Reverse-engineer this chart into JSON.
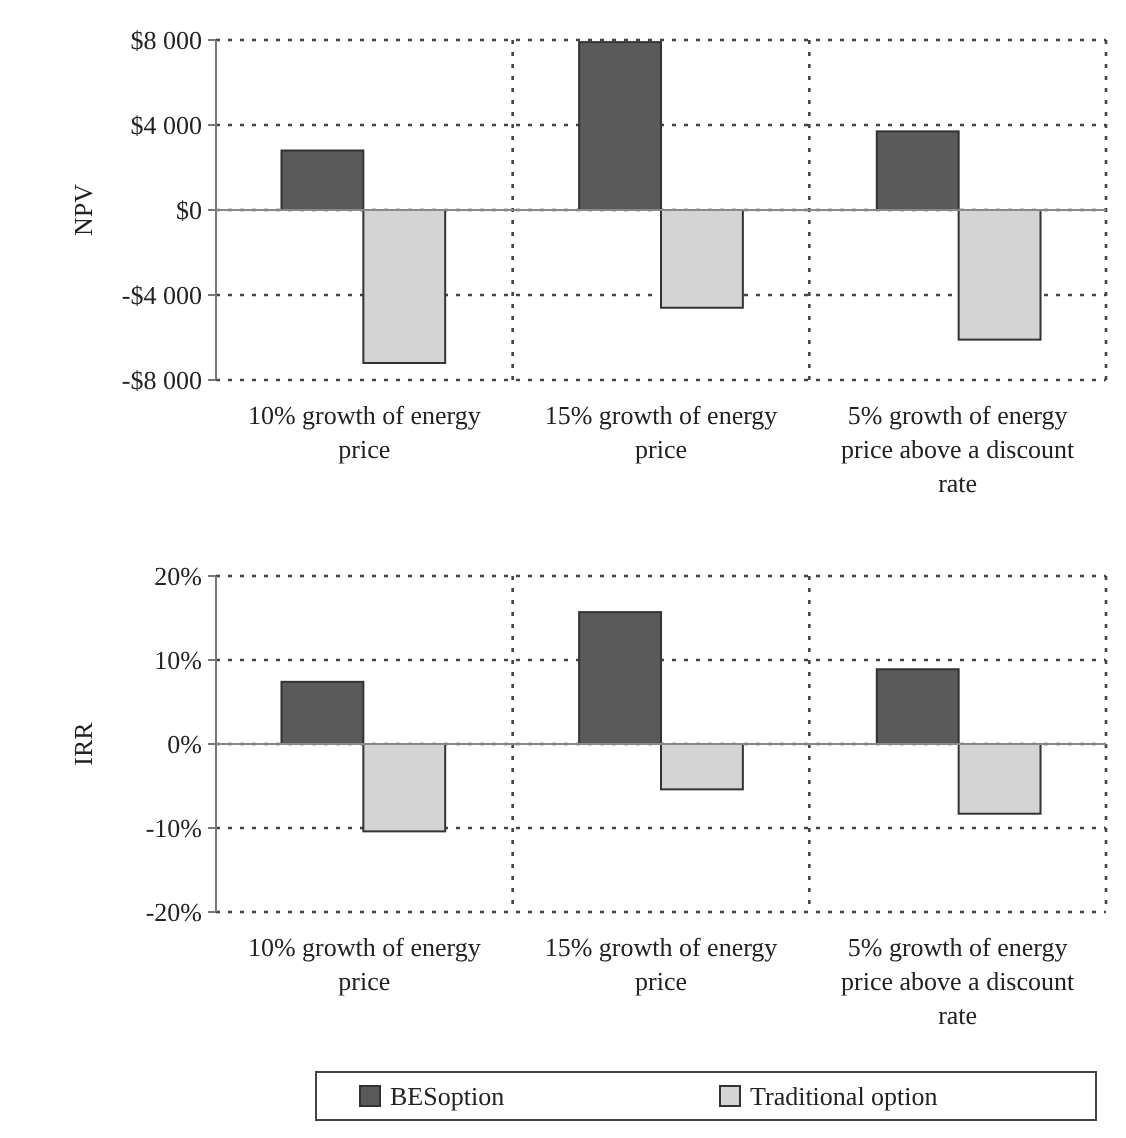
{
  "chart_data": [
    {
      "type": "bar",
      "ylabel": "NPV",
      "categories": [
        "10% growth of energy price",
        "15% growth of energy price",
        "5% growth of energy price above a discount rate"
      ],
      "series": [
        {
          "color": "#5a5a5a",
          "values": [
            2800,
            7900,
            3700
          ]
        },
        {
          "color": "#d4d4d4",
          "values": [
            -7200,
            -4600,
            -6100
          ]
        }
      ],
      "ylim": [
        -8000,
        8000
      ],
      "yticks": [
        {
          "value": -8000,
          "label": "-$8 000"
        },
        {
          "value": -4000,
          "label": "-$4 000"
        },
        {
          "value": 0,
          "label": "$0"
        },
        {
          "value": 4000,
          "label": "$4 000"
        },
        {
          "value": 8000,
          "label": "$8 000"
        }
      ],
      "grid": true,
      "legend": false
    },
    {
      "type": "bar",
      "ylabel": "IRR",
      "categories": [
        "10% growth of energy price",
        "15% growth of energy price",
        "5% growth of energy price above a discount rate"
      ],
      "series": [
        {
          "name": "BESoption",
          "color": "#5a5a5a",
          "values": [
            7.4,
            15.7,
            8.9
          ]
        },
        {
          "name": "Traditional option",
          "color": "#d4d4d4",
          "values": [
            -10.4,
            -5.4,
            -8.3
          ]
        }
      ],
      "ylim": [
        -20,
        20
      ],
      "yticks": [
        {
          "value": -20,
          "label": "-20%"
        },
        {
          "value": -10,
          "label": "-10%"
        },
        {
          "value": 0,
          "label": "0%"
        },
        {
          "value": 10,
          "label": "10%"
        },
        {
          "value": 20,
          "label": "20%"
        }
      ],
      "grid": true,
      "legend": "bottom"
    }
  ]
}
